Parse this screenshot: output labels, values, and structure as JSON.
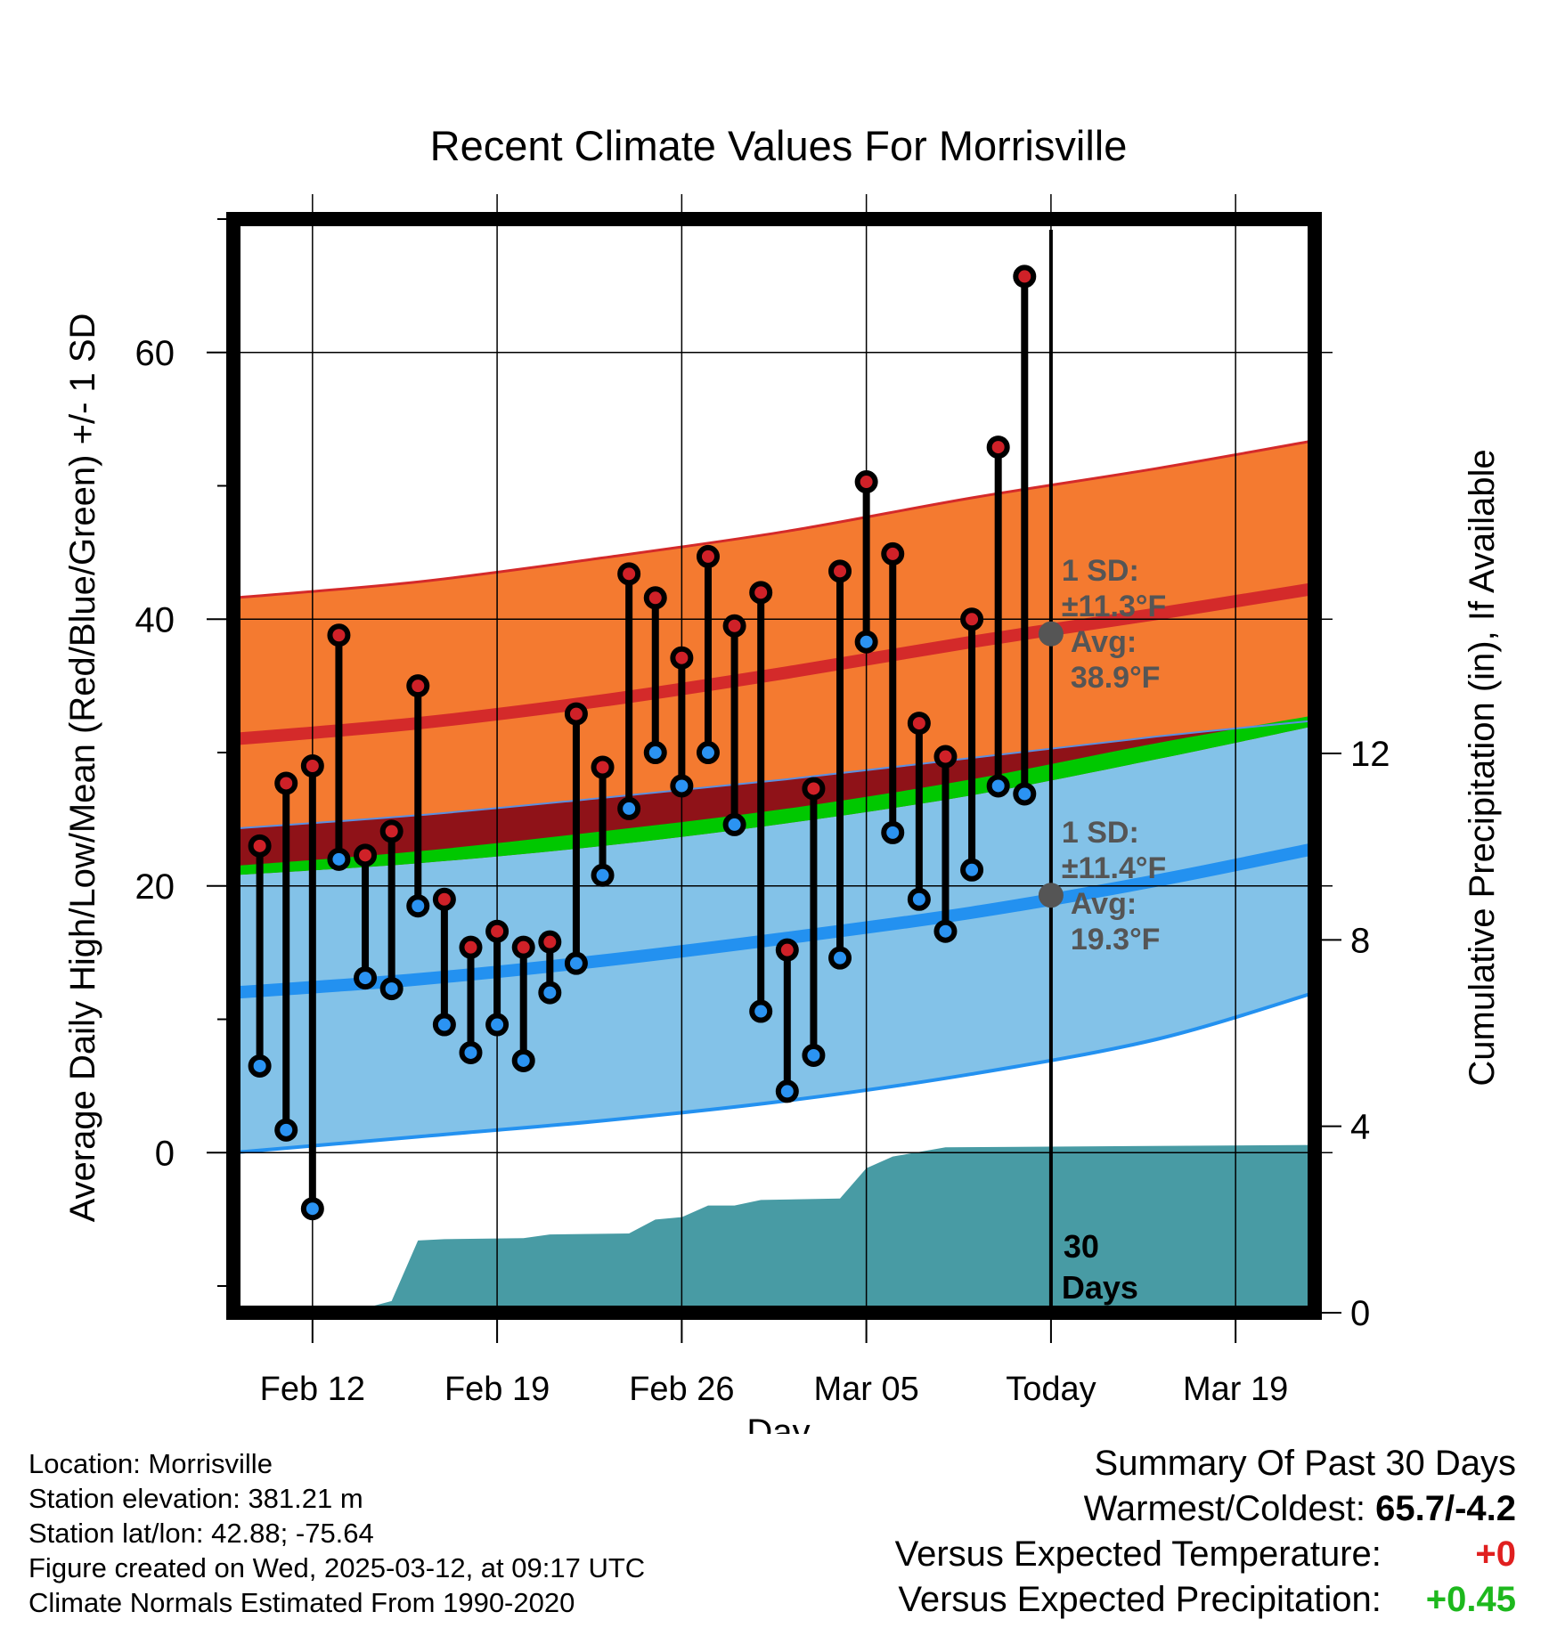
{
  "chart_data": {
    "type": "range-bar",
    "title": "Recent Climate Values For Morrisville",
    "xlabel": "Day",
    "ylabel_left": "Average Daily High/Low/Mean (Red/Blue/Green) +/- 1 SD",
    "ylabel_right": "Cumulative Precipitation (in), If Available",
    "x_range": [
      "2025-02-09",
      "2025-03-22"
    ],
    "ylim_left": [
      -12,
      70
    ],
    "ylim_right": [
      0,
      24
    ],
    "y_ticks_left": [
      0,
      20,
      40,
      60
    ],
    "y_ticks_right": [
      0,
      4,
      8,
      12
    ],
    "x_ticks": [
      {
        "date": "2025-02-12",
        "label": "Feb 12"
      },
      {
        "date": "2025-02-19",
        "label": "Feb 19"
      },
      {
        "date": "2025-02-26",
        "label": "Feb 26"
      },
      {
        "date": "2025-03-05",
        "label": "Mar 05"
      },
      {
        "date": "2025-03-12",
        "label": "Today"
      },
      {
        "date": "2025-03-19",
        "label": "Mar 19"
      }
    ],
    "grid": true,
    "today": "2025-03-12",
    "period_label_line1": "30",
    "period_label_line2": "Days",
    "daily_observed": [
      {
        "date": "2025-02-10",
        "high": 23.0,
        "low": 6.5
      },
      {
        "date": "2025-02-11",
        "high": 27.7,
        "low": 1.7
      },
      {
        "date": "2025-02-12",
        "high": 29.0,
        "low": -4.2
      },
      {
        "date": "2025-02-13",
        "high": 38.8,
        "low": 22.0
      },
      {
        "date": "2025-02-14",
        "high": 22.3,
        "low": 13.1
      },
      {
        "date": "2025-02-15",
        "high": 24.1,
        "low": 12.3
      },
      {
        "date": "2025-02-16",
        "high": 35.0,
        "low": 18.5
      },
      {
        "date": "2025-02-17",
        "high": 19.0,
        "low": 9.6
      },
      {
        "date": "2025-02-18",
        "high": 15.4,
        "low": 7.5
      },
      {
        "date": "2025-02-19",
        "high": 16.6,
        "low": 9.6
      },
      {
        "date": "2025-02-20",
        "high": 15.4,
        "low": 6.9
      },
      {
        "date": "2025-02-21",
        "high": 15.8,
        "low": 12.0
      },
      {
        "date": "2025-02-22",
        "high": 32.9,
        "low": 14.2
      },
      {
        "date": "2025-02-23",
        "high": 28.9,
        "low": 20.8
      },
      {
        "date": "2025-02-24",
        "high": 43.4,
        "low": 25.8
      },
      {
        "date": "2025-02-25",
        "high": 41.6,
        "low": 30.0
      },
      {
        "date": "2025-02-26",
        "high": 37.1,
        "low": 27.5
      },
      {
        "date": "2025-02-27",
        "high": 44.7,
        "low": 30.0
      },
      {
        "date": "2025-02-28",
        "high": 39.5,
        "low": 24.6
      },
      {
        "date": "2025-03-01",
        "high": 42.0,
        "low": 10.6
      },
      {
        "date": "2025-03-02",
        "high": 15.2,
        "low": 4.6
      },
      {
        "date": "2025-03-03",
        "high": 27.3,
        "low": 7.3
      },
      {
        "date": "2025-03-04",
        "high": 43.6,
        "low": 14.6
      },
      {
        "date": "2025-03-05",
        "high": 50.3,
        "low": 38.3
      },
      {
        "date": "2025-03-06",
        "high": 44.9,
        "low": 24.0
      },
      {
        "date": "2025-03-07",
        "high": 32.2,
        "low": 19.0
      },
      {
        "date": "2025-03-08",
        "high": 29.7,
        "low": 16.6
      },
      {
        "date": "2025-03-09",
        "high": 40.0,
        "low": 21.2
      },
      {
        "date": "2025-03-10",
        "high": 52.9,
        "low": 27.5
      },
      {
        "date": "2025-03-11",
        "high": 65.7,
        "low": 26.9
      }
    ],
    "normals": {
      "dates": [
        "2025-02-09",
        "2025-02-16",
        "2025-02-23",
        "2025-03-02",
        "2025-03-09",
        "2025-03-16",
        "2025-03-22"
      ],
      "high_avg": [
        31.0,
        32.2,
        33.9,
        36.0,
        38.3,
        40.4,
        42.3
      ],
      "high_upper": [
        41.6,
        42.8,
        44.6,
        46.6,
        49.1,
        51.3,
        53.4
      ],
      "high_lower": [
        24.3,
        25.3,
        26.6,
        28.0,
        29.6,
        31.2,
        32.4
      ],
      "low_avg": [
        12.0,
        13.0,
        14.4,
        16.1,
        18.0,
        20.4,
        22.8
      ],
      "low_upper": [
        20.8,
        21.7,
        23.0,
        24.7,
        26.8,
        29.5,
        32.0
      ],
      "low_lower": [
        0.0,
        1.2,
        2.4,
        3.9,
        5.9,
        8.5,
        12.0
      ],
      "mean_avg": [
        21.5,
        22.6,
        24.1,
        25.8,
        28.0,
        30.7,
        32.8
      ]
    },
    "precip_cumulative": [
      {
        "date": "2025-02-09",
        "value": 0.0
      },
      {
        "date": "2025-02-13",
        "value": 0.0
      },
      {
        "date": "2025-02-14",
        "value": 0.1
      },
      {
        "date": "2025-02-15",
        "value": 0.25
      },
      {
        "date": "2025-02-16",
        "value": 1.55
      },
      {
        "date": "2025-02-17",
        "value": 1.58
      },
      {
        "date": "2025-02-20",
        "value": 1.6
      },
      {
        "date": "2025-02-21",
        "value": 1.68
      },
      {
        "date": "2025-02-24",
        "value": 1.7
      },
      {
        "date": "2025-02-25",
        "value": 2.0
      },
      {
        "date": "2025-02-26",
        "value": 2.05
      },
      {
        "date": "2025-02-27",
        "value": 2.3
      },
      {
        "date": "2025-02-28",
        "value": 2.3
      },
      {
        "date": "2025-03-01",
        "value": 2.42
      },
      {
        "date": "2025-03-04",
        "value": 2.45
      },
      {
        "date": "2025-03-05",
        "value": 3.1
      },
      {
        "date": "2025-03-06",
        "value": 3.35
      },
      {
        "date": "2025-03-08",
        "value": 3.55
      },
      {
        "date": "2025-03-22",
        "value": 3.6
      }
    ],
    "annotations": {
      "high": {
        "sd_label": "1 SD:",
        "sd_value": "±11.3°F",
        "avg_label": "Avg:",
        "avg_value": "38.9°F",
        "avg_point": 38.9
      },
      "low": {
        "sd_label": "1 SD:",
        "sd_value": "±11.4°F",
        "avg_label": "Avg:",
        "avg_value": "19.3°F",
        "avg_point": 19.3
      }
    }
  },
  "colors": {
    "high_band": "#f47a30",
    "high_line": "#d42a2a",
    "low_band": "#83c2e8",
    "low_line": "#2391f0",
    "overlap_band": "#8f1218",
    "mean_band": "#00c800",
    "precip": "#489ba4",
    "high_dot": "#cf2128",
    "low_dot": "#2b93f2",
    "annotation": "#555555"
  },
  "info": {
    "location": "Location: Morrisville",
    "elevation": "Station elevation: 381.21 m",
    "latlon": "Station lat/lon: 42.88; -75.64",
    "created": "Figure created on Wed, 2025-03-12, at 09:17 UTC",
    "normals": "Climate Normals Estimated From 1990-2020"
  },
  "summary": {
    "title": "Summary Of Past 30 Days",
    "warmest_label": "Warmest/Coldest:",
    "warmest_value": "65.7/-4.2",
    "temp_label": "Versus Expected Temperature:",
    "temp_value": "+0",
    "temp_color": "#e01f1f",
    "precip_label": "Versus Expected Precipitation:",
    "precip_value": "+0.45",
    "precip_color": "#1db81d"
  }
}
